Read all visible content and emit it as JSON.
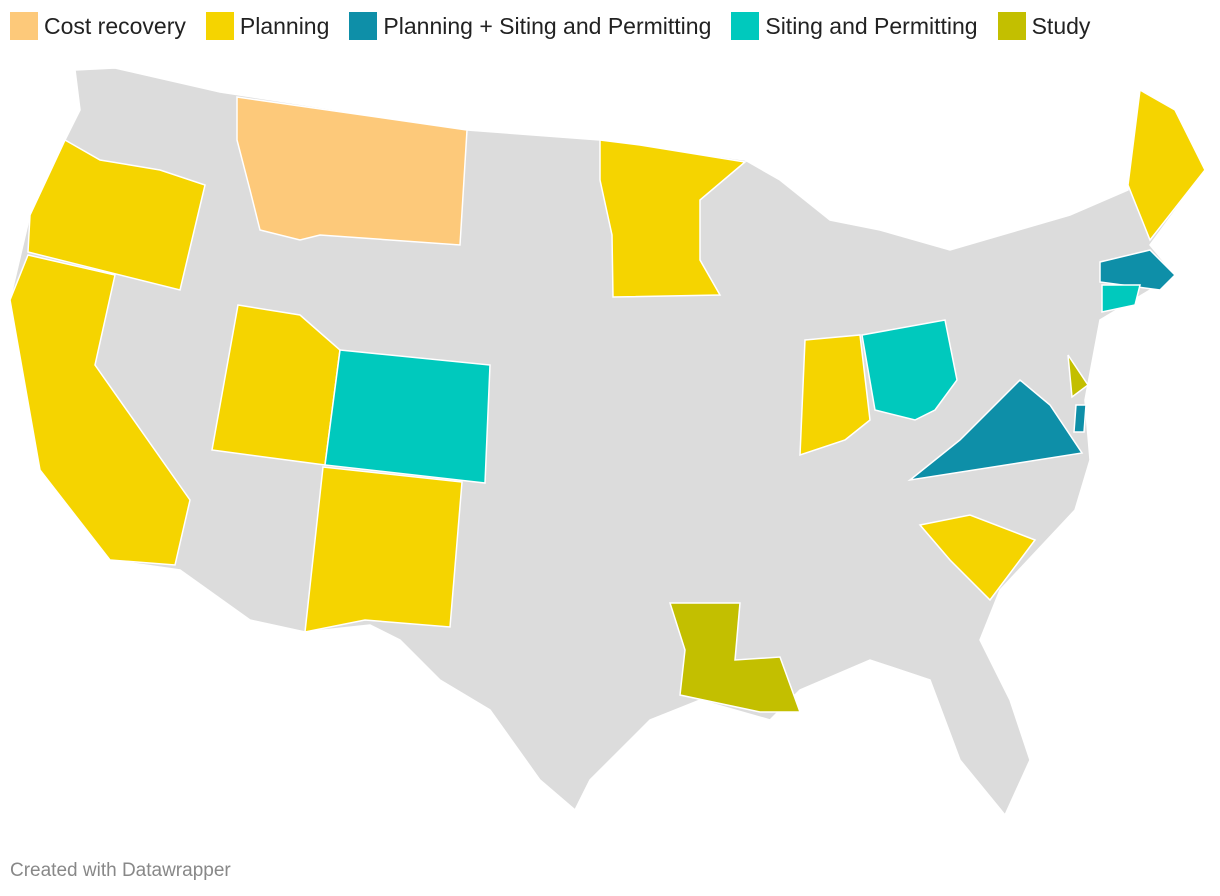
{
  "legend": {
    "items": [
      {
        "label": "Cost recovery",
        "color": "#fdc97a"
      },
      {
        "label": "Planning",
        "color": "#f5d400"
      },
      {
        "label": "Planning + Siting and Permitting",
        "color": "#0e8fa8"
      },
      {
        "label": "Siting and Permitting",
        "color": "#00c9bd"
      },
      {
        "label": "Study",
        "color": "#c3bf00"
      }
    ]
  },
  "footer": {
    "credit": "Created with Datawrapper"
  }
}
